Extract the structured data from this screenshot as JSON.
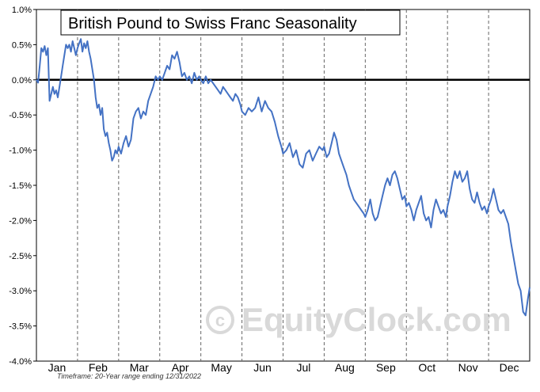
{
  "chart_data": {
    "type": "line",
    "title": "British Pound to Swiss Franc Seasonality",
    "xlabel": "",
    "ylabel": "",
    "ylim": [
      -4.0,
      1.0
    ],
    "y_ticks": [
      "1.0%",
      "0.5%",
      "0.0%",
      "-0.5%",
      "-1.0%",
      "-1.5%",
      "-2.0%",
      "-2.5%",
      "-3.0%",
      "-3.5%",
      "-4.0%"
    ],
    "y_tick_values": [
      1.0,
      0.5,
      0.0,
      -0.5,
      -1.0,
      -1.5,
      -2.0,
      -2.5,
      -3.0,
      -3.5,
      -4.0
    ],
    "categories": [
      "Jan",
      "Feb",
      "Mar",
      "Apr",
      "May",
      "Jun",
      "Jul",
      "Aug",
      "Sep",
      "Oct",
      "Nov",
      "Dec"
    ],
    "grid": "vertical-dashed",
    "zero_line": true,
    "series_color": "#4472c4",
    "series": [
      {
        "name": "",
        "x": [
          0.0,
          0.04,
          0.08,
          0.12,
          0.16,
          0.2,
          0.24,
          0.28,
          0.32,
          0.36,
          0.4,
          0.44,
          0.48,
          0.52,
          0.56,
          0.6,
          0.64,
          0.68,
          0.72,
          0.76,
          0.8,
          0.84,
          0.88,
          0.92,
          0.96,
          1.0,
          1.04,
          1.08,
          1.12,
          1.16,
          1.2,
          1.24,
          1.28,
          1.32,
          1.36,
          1.4,
          1.44,
          1.48,
          1.52,
          1.56,
          1.6,
          1.64,
          1.68,
          1.72,
          1.76,
          1.8,
          1.84,
          1.88,
          1.92,
          1.96,
          2.0,
          2.06,
          2.12,
          2.18,
          2.24,
          2.3,
          2.36,
          2.42,
          2.48,
          2.54,
          2.6,
          2.66,
          2.72,
          2.78,
          2.84,
          2.9,
          2.96,
          3.0,
          3.06,
          3.12,
          3.18,
          3.24,
          3.3,
          3.36,
          3.42,
          3.48,
          3.54,
          3.6,
          3.66,
          3.72,
          3.78,
          3.84,
          3.9,
          3.96,
          4.0,
          4.06,
          4.12,
          4.18,
          4.24,
          4.3,
          4.36,
          4.42,
          4.48,
          4.54,
          4.6,
          4.66,
          4.72,
          4.78,
          4.84,
          4.9,
          4.96,
          5.0,
          5.08,
          5.16,
          5.24,
          5.32,
          5.4,
          5.48,
          5.56,
          5.64,
          5.72,
          5.8,
          5.88,
          5.96,
          6.0,
          6.08,
          6.16,
          6.24,
          6.32,
          6.4,
          6.48,
          6.56,
          6.64,
          6.72,
          6.8,
          6.88,
          6.96,
          7.0,
          7.06,
          7.12,
          7.18,
          7.24,
          7.3,
          7.36,
          7.42,
          7.48,
          7.54,
          7.6,
          7.66,
          7.72,
          7.78,
          7.84,
          7.9,
          7.96,
          8.0,
          8.06,
          8.12,
          8.18,
          8.24,
          8.3,
          8.36,
          8.42,
          8.48,
          8.54,
          8.6,
          8.66,
          8.72,
          8.78,
          8.84,
          8.9,
          8.96,
          9.0,
          9.06,
          9.12,
          9.18,
          9.24,
          9.3,
          9.36,
          9.42,
          9.48,
          9.54,
          9.6,
          9.66,
          9.72,
          9.78,
          9.84,
          9.9,
          9.96,
          10.0,
          10.06,
          10.12,
          10.18,
          10.24,
          10.3,
          10.36,
          10.42,
          10.48,
          10.54,
          10.6,
          10.66,
          10.72,
          10.78,
          10.84,
          10.9,
          10.96,
          11.0,
          11.06,
          11.12,
          11.18,
          11.24,
          11.3,
          11.36,
          11.42,
          11.48,
          11.54,
          11.6,
          11.66,
          11.72,
          11.78,
          11.84,
          11.9,
          11.96,
          12.0
        ],
        "values": [
          0.0,
          -0.04,
          0.2,
          0.45,
          0.4,
          0.48,
          0.35,
          0.45,
          -0.3,
          -0.2,
          -0.1,
          -0.2,
          -0.15,
          -0.25,
          -0.1,
          0.05,
          0.2,
          0.35,
          0.5,
          0.45,
          0.5,
          0.4,
          0.55,
          0.45,
          0.35,
          0.45,
          0.52,
          0.58,
          0.4,
          0.52,
          0.45,
          0.55,
          0.4,
          0.3,
          0.15,
          0.0,
          -0.25,
          -0.4,
          -0.35,
          -0.5,
          -0.4,
          -0.7,
          -0.8,
          -0.75,
          -0.9,
          -1.0,
          -1.15,
          -1.1,
          -1.0,
          -1.05,
          -0.95,
          -1.05,
          -0.9,
          -0.8,
          -0.95,
          -0.85,
          -0.55,
          -0.45,
          -0.4,
          -0.55,
          -0.45,
          -0.5,
          -0.3,
          -0.2,
          -0.1,
          0.05,
          0.0,
          0.05,
          0.0,
          0.1,
          0.2,
          0.15,
          0.35,
          0.3,
          0.4,
          0.25,
          0.05,
          0.1,
          0.0,
          0.05,
          -0.05,
          0.1,
          0.0,
          0.05,
          0.0,
          -0.05,
          0.05,
          -0.05,
          0.0,
          -0.05,
          -0.1,
          -0.15,
          -0.2,
          -0.1,
          -0.15,
          -0.2,
          -0.25,
          -0.3,
          -0.2,
          -0.25,
          -0.35,
          -0.45,
          -0.5,
          -0.4,
          -0.45,
          -0.4,
          -0.25,
          -0.45,
          -0.3,
          -0.4,
          -0.45,
          -0.6,
          -0.8,
          -0.95,
          -1.05,
          -1.0,
          -0.9,
          -1.1,
          -1.0,
          -1.2,
          -1.25,
          -1.05,
          -1.0,
          -1.15,
          -1.05,
          -0.95,
          -1.0,
          -0.95,
          -1.1,
          -1.05,
          -0.9,
          -0.75,
          -0.85,
          -1.05,
          -1.15,
          -1.25,
          -1.35,
          -1.5,
          -1.6,
          -1.7,
          -1.75,
          -1.8,
          -1.85,
          -1.9,
          -1.95,
          -1.85,
          -1.7,
          -1.9,
          -2.0,
          -1.95,
          -1.8,
          -1.65,
          -1.5,
          -1.4,
          -1.5,
          -1.35,
          -1.3,
          -1.4,
          -1.55,
          -1.7,
          -1.65,
          -1.8,
          -1.75,
          -1.85,
          -2.0,
          -1.85,
          -1.75,
          -1.65,
          -1.9,
          -2.0,
          -1.95,
          -2.1,
          -1.85,
          -1.7,
          -1.8,
          -1.9,
          -1.85,
          -1.95,
          -1.8,
          -1.65,
          -1.45,
          -1.3,
          -1.4,
          -1.3,
          -1.45,
          -1.4,
          -1.3,
          -1.55,
          -1.7,
          -1.75,
          -1.6,
          -1.75,
          -1.85,
          -1.8,
          -1.9,
          -1.8,
          -1.7,
          -1.55,
          -1.7,
          -1.85,
          -1.9,
          -1.85,
          -1.95,
          -2.05,
          -2.3,
          -2.5,
          -2.7,
          -2.9,
          -3.0,
          -3.3,
          -3.35,
          -3.1,
          -2.95
        ]
      }
    ],
    "footnote": "Timeframe: 20-Year range ending 12/31/2022",
    "watermark": "EquityClock.com"
  }
}
